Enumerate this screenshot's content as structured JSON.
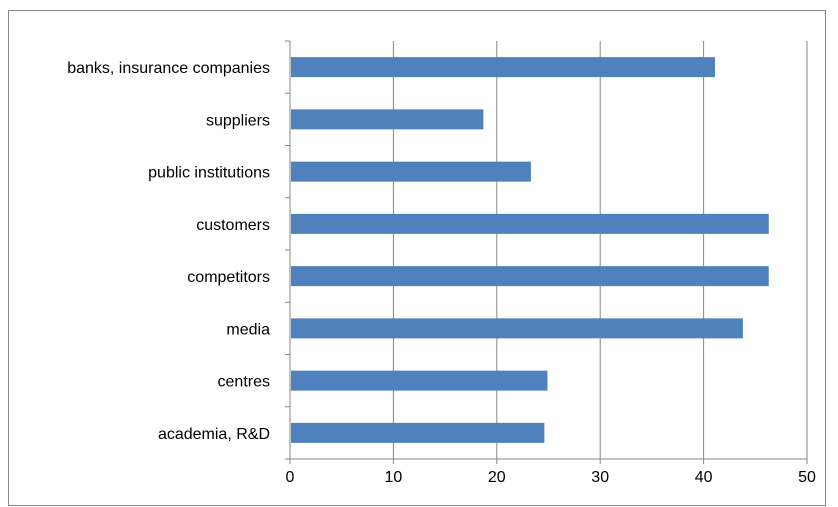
{
  "chart_data": {
    "type": "bar",
    "orientation": "horizontal",
    "categories": [
      "banks, insurance companies",
      "suppliers",
      "public institutions",
      "customers",
      "competitors",
      "media",
      "centres",
      "academia, R&D"
    ],
    "values": [
      41.1,
      18.7,
      23.3,
      46.3,
      46.3,
      43.8,
      24.9,
      24.6
    ],
    "xlim": [
      0,
      50
    ],
    "xticks": [
      "0",
      "10",
      "20",
      "30",
      "40",
      "50"
    ],
    "title": "",
    "xlabel": "",
    "ylabel": "",
    "grid": "vertical",
    "bar_color": "#4F81BD",
    "grid_color": "#868686"
  }
}
